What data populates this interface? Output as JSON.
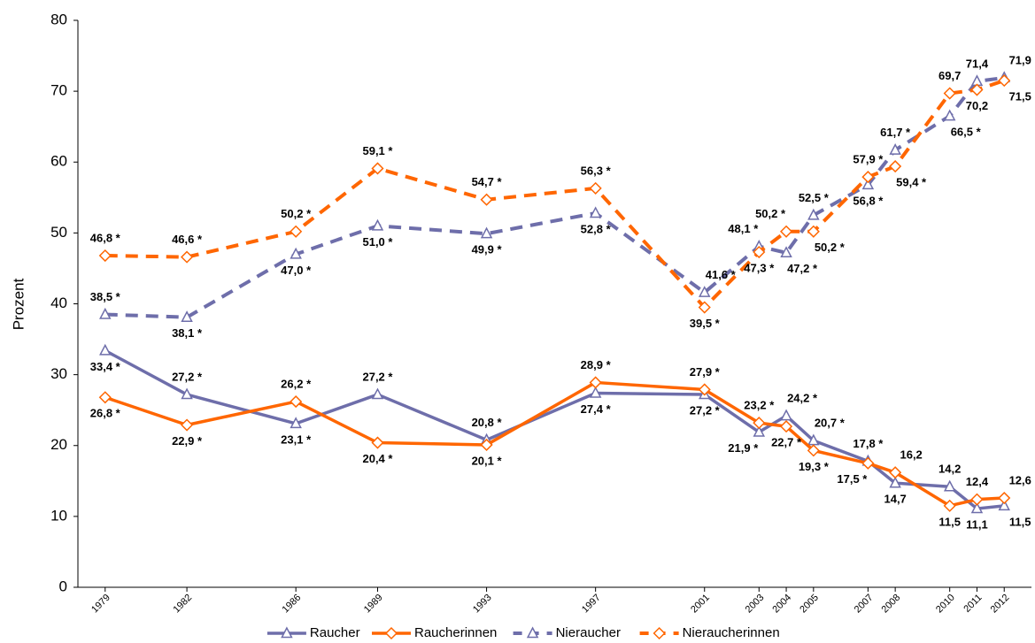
{
  "chart_data": {
    "type": "line",
    "y_label": "Prozent",
    "x": [
      1979,
      1982,
      1986,
      1989,
      1993,
      1997,
      2001,
      2003,
      2004,
      2005,
      2007,
      2008,
      2010,
      2011,
      2012
    ],
    "xlim": [
      1978,
      2013
    ],
    "xticks": [
      1979,
      1982,
      1986,
      1989,
      1993,
      1997,
      2001,
      2003,
      2004,
      2005,
      2007,
      2008,
      2010,
      2011,
      2012
    ],
    "ylim": [
      0,
      80
    ],
    "yticks": [
      0,
      10,
      20,
      30,
      40,
      50,
      60,
      70,
      80
    ],
    "legend": "bottom",
    "series": [
      {
        "name": "Raucher",
        "color": "#6e6eaa",
        "dash": false,
        "marker": "triangle",
        "values": [
          33.4,
          27.2,
          23.1,
          27.2,
          20.8,
          27.4,
          27.2,
          21.9,
          24.2,
          20.7,
          17.8,
          14.7,
          14.2,
          11.1,
          11.5
        ],
        "value_labels": [
          "33,4 *",
          "27,2 *",
          "23,1 *",
          "27,2 *",
          "20,8 *",
          "27,4 *",
          "27,2 *",
          "21,9 *",
          "24,2 *",
          "20,7 *",
          "17,8 *",
          "14,7",
          "14,2",
          "11,1",
          "11,5"
        ]
      },
      {
        "name": "Raucherinnen",
        "color": "#ff6600",
        "dash": false,
        "marker": "diamond",
        "values": [
          26.8,
          22.9,
          26.2,
          20.4,
          20.1,
          28.9,
          27.9,
          23.2,
          22.7,
          19.3,
          17.5,
          16.2,
          11.5,
          12.4,
          12.6
        ],
        "value_labels": [
          "26,8 *",
          "22,9 *",
          "26,2 *",
          "20,4 *",
          "20,1 *",
          "28,9 *",
          "27,9 *",
          "23,2 *",
          "22,7 *",
          "19,3 *",
          "17,5 *",
          "16,2",
          "11,5",
          "12,4",
          "12,6"
        ]
      },
      {
        "name": "Nieraucher",
        "color": "#6e6eaa",
        "dash": true,
        "marker": "triangle",
        "values": [
          38.5,
          38.1,
          47.0,
          51.0,
          49.9,
          52.8,
          41.6,
          48.1,
          47.2,
          52.5,
          56.8,
          61.7,
          66.5,
          71.4,
          71.9
        ],
        "value_labels": [
          "38,5 *",
          "38,1 *",
          "47,0 *",
          "51,0 *",
          "49,9 *",
          "52,8 *",
          "41,6 *",
          "48,1 *",
          "47,2 *",
          "52,5 *",
          "56,8 *",
          "61,7 *",
          "66,5 *",
          "71,4",
          "71,9"
        ]
      },
      {
        "name": "Nieraucherinnen",
        "color": "#ff6600",
        "dash": true,
        "marker": "diamond",
        "values": [
          46.8,
          46.6,
          50.2,
          59.1,
          54.7,
          56.3,
          39.5,
          47.3,
          50.2,
          50.2,
          57.9,
          59.4,
          69.7,
          70.2,
          71.5
        ],
        "value_labels": [
          "46,8 *",
          "46,6 *",
          "50,2 *",
          "59,1 *",
          "54,7 *",
          "56,3 *",
          "39,5 *",
          "47,3 *",
          "50,2 *",
          "50,2 *",
          "57,9 *",
          "59,4 *",
          "69,7",
          "70,2",
          "71,5"
        ]
      }
    ]
  }
}
